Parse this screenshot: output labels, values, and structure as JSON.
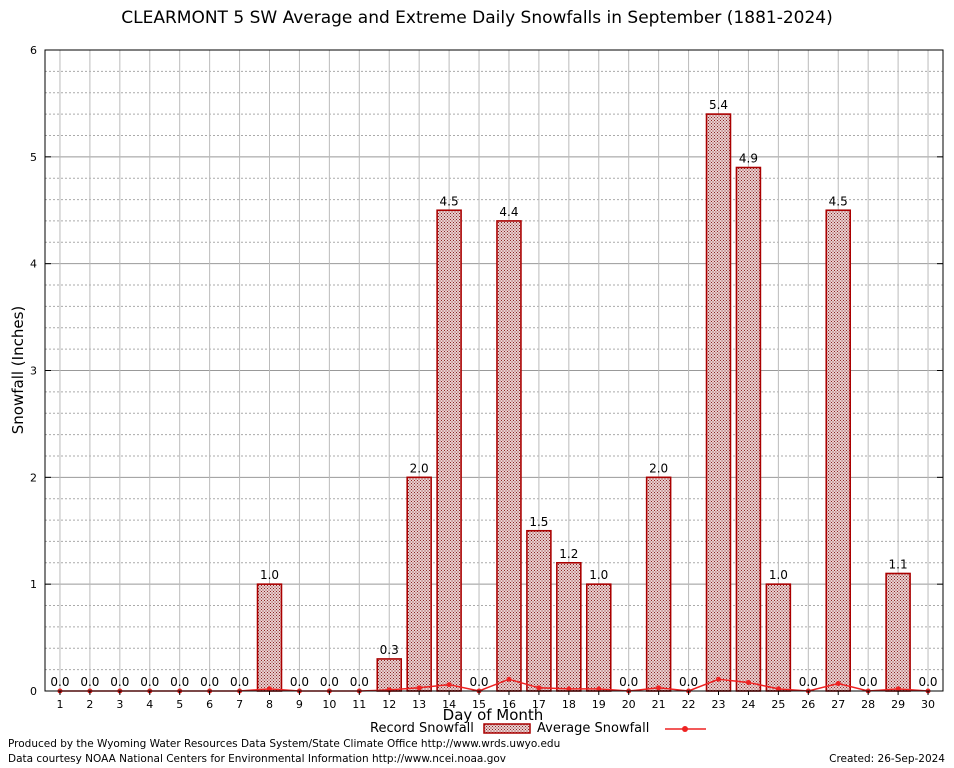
{
  "chart_data": {
    "type": "bar",
    "title": "CLEARMONT 5 SW Average and Extreme Daily Snowfalls in September (1881-2024)",
    "xlabel": "Day of Month",
    "ylabel": "Snowfall (Inches)",
    "ylim": [
      0,
      6
    ],
    "y_ticks": [
      "0",
      "1",
      "2",
      "3",
      "4",
      "5",
      "6"
    ],
    "grid": true,
    "legend_position": "bottom",
    "categories": [
      "1",
      "2",
      "3",
      "4",
      "5",
      "6",
      "7",
      "8",
      "9",
      "10",
      "11",
      "12",
      "13",
      "14",
      "15",
      "16",
      "17",
      "18",
      "19",
      "20",
      "21",
      "22",
      "23",
      "24",
      "25",
      "26",
      "27",
      "28",
      "29",
      "30"
    ],
    "series": [
      {
        "name": "Record Snowfall",
        "kind": "bar",
        "color": "#aa0000",
        "values": [
          0.0,
          0.0,
          0.0,
          0.0,
          0.0,
          0.0,
          0.0,
          1.0,
          0.0,
          0.0,
          0.0,
          0.3,
          2.0,
          4.5,
          0.0,
          4.4,
          1.5,
          1.2,
          1.0,
          0.0,
          2.0,
          0.0,
          5.4,
          4.9,
          1.0,
          0.0,
          4.5,
          0.0,
          1.1,
          0.0
        ],
        "labels": [
          "0.0",
          "0.0",
          "0.0",
          "0.0",
          "0.0",
          "0.0",
          "0.0",
          "1.0",
          "0.0",
          "0.0",
          "0.0",
          "0.3",
          "2.0",
          "4.5",
          "0.0",
          "4.4",
          "1.5",
          "1.2",
          "1.0",
          "0.0",
          "2.0",
          "0.0",
          "5.4",
          "4.9",
          "1.0",
          "0.0",
          "4.5",
          "0.0",
          "1.1",
          "0.0"
        ]
      },
      {
        "name": "Average Snowfall",
        "kind": "line",
        "color": "#ee2222",
        "values": [
          0,
          0,
          0,
          0,
          0,
          0,
          0,
          0.02,
          0,
          0,
          0,
          0.01,
          0.03,
          0.06,
          0,
          0.11,
          0.03,
          0.02,
          0.02,
          0,
          0.03,
          0,
          0.11,
          0.08,
          0.02,
          0,
          0.07,
          0,
          0.02,
          0
        ]
      }
    ]
  },
  "footer": {
    "produced_by": "Produced by the Wyoming Water Resources Data System/State Climate Office http://www.wrds.uwyo.edu",
    "courtesy": "Data courtesy NOAA National Centers for Environmental Information http://www.ncei.noaa.gov",
    "created": "Created:  26-Sep-2024"
  }
}
